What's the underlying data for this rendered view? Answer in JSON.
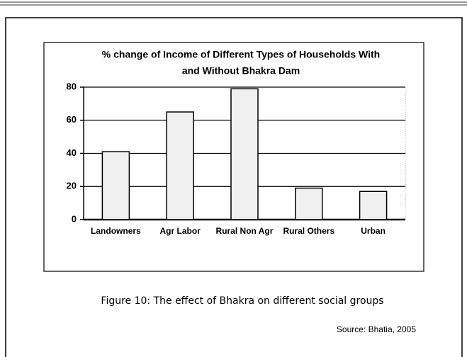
{
  "chart_data": {
    "type": "bar",
    "title": [
      "% change of Income of Different Types of Households With",
      "and Without Bhakra Dam"
    ],
    "categories": [
      "Landowners",
      "Agr Labor",
      "Rural Non Agr",
      "Rural Others",
      "Urban"
    ],
    "values": [
      41,
      65,
      79,
      19,
      17
    ],
    "color": "#f0f0f0",
    "ylim": [
      0,
      80
    ],
    "yticks": [
      0,
      20,
      40,
      60,
      80
    ],
    "grid": true
  },
  "caption": "Figure 10:  The effect of Bhakra on different social groups",
  "source": "Source: Bhatia, 2005"
}
